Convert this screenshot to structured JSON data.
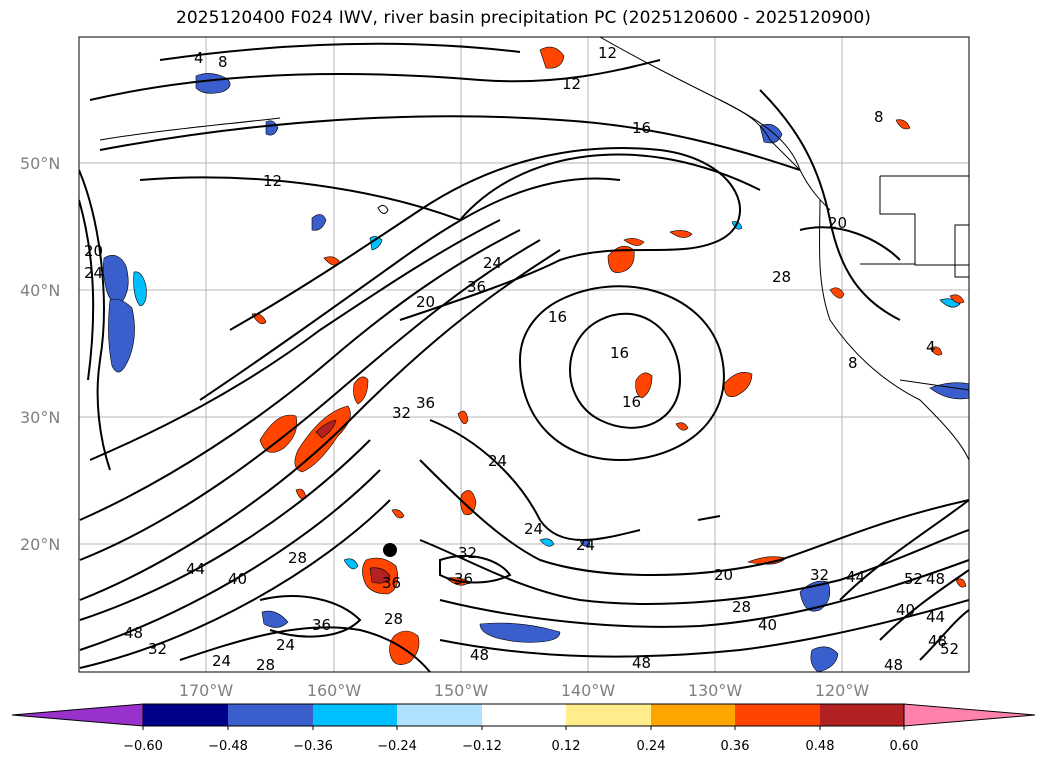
{
  "title": "2025120400 F024 IWV, river basin precipitation PC (2025120600 - 2025120900)",
  "map": {
    "lat_labels": [
      "50°N",
      "40°N",
      "30°N",
      "20°N"
    ],
    "lon_labels": [
      "170°W",
      "160°W",
      "150°W",
      "140°W",
      "130°W",
      "120°W"
    ],
    "contour_labels": [
      "4",
      "8",
      "12",
      "12",
      "16",
      "12",
      "20",
      "24",
      "20",
      "24",
      "36",
      "16",
      "16",
      "16",
      "20",
      "28",
      "8",
      "8",
      "4",
      "32",
      "36",
      "24",
      "24",
      "24",
      "28",
      "36",
      "32",
      "28",
      "24",
      "28",
      "44",
      "40",
      "48",
      "32",
      "24",
      "36",
      "48",
      "36",
      "48",
      "20",
      "28",
      "40",
      "32",
      "44",
      "52",
      "48",
      "40",
      "44",
      "48",
      "52",
      "48"
    ]
  },
  "colorbar": {
    "tick_labels": [
      "-0.60",
      "-0.48",
      "-0.36",
      "-0.24",
      "-0.12",
      "0.12",
      "0.24",
      "0.36",
      "0.48",
      "0.60"
    ],
    "colors": [
      "#9932cc",
      "#00008b",
      "#3a5fcd",
      "#00bfff",
      "#b0e2ff",
      "#ffffff",
      "#ffec8b",
      "#ffa500",
      "#ff4500",
      "#b22222",
      "#ff82ab"
    ]
  }
}
